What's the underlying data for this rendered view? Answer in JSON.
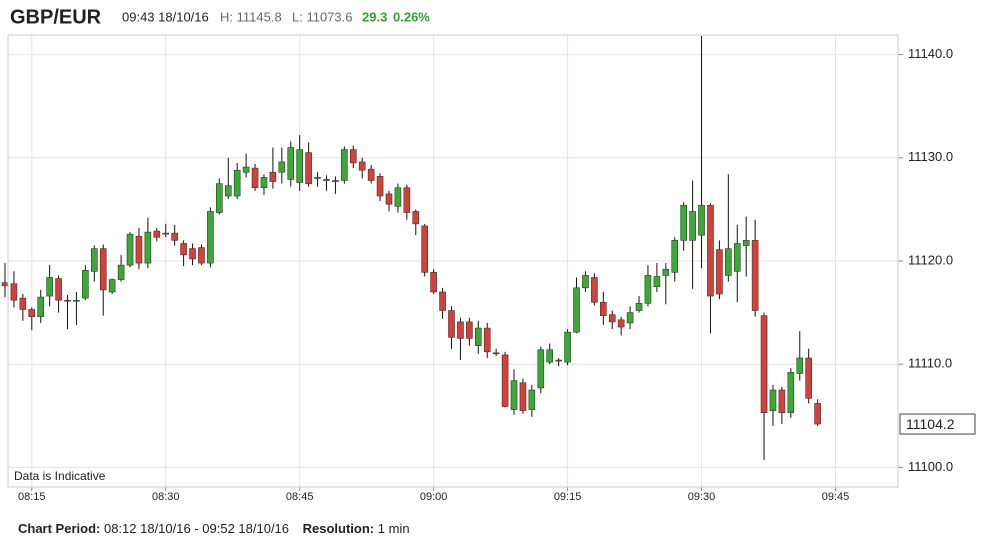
{
  "header": {
    "pair": "GBP/EUR",
    "time": "09:43 18/10/16",
    "high": "H: 11145.8",
    "low": "L: 11073.6",
    "change": "29.3",
    "change_pct": "0.26%"
  },
  "footer": {
    "period_label": "Chart Period:",
    "period": "08:12 18/10/16 - 09:52 18/10/16",
    "resolution_label": "Resolution:",
    "resolution": "1 min"
  },
  "chart_data": {
    "type": "candlestick",
    "annotation": "Data is Indicative",
    "up_color": "#3aaa35",
    "down_color": "#d6403a",
    "grid": true,
    "xlim": [
      "08:12",
      "09:52"
    ],
    "xticks": [
      "08:15",
      "08:30",
      "08:45",
      "09:00",
      "09:15",
      "09:30",
      "09:45"
    ],
    "ylim": [
      11098.1,
      11141.9
    ],
    "yticks": [
      {
        "value": 11100,
        "label": "11100.0"
      },
      {
        "value": 11110,
        "label": "11110.0"
      },
      {
        "value": 11120,
        "label": "11120.0"
      },
      {
        "value": 11130,
        "label": "11130.0"
      },
      {
        "value": 11140,
        "label": "11140.0"
      }
    ],
    "x": [
      "08:12",
      "08:13",
      "08:14",
      "08:15",
      "08:16",
      "08:17",
      "08:18",
      "08:19",
      "08:20",
      "08:21",
      "08:22",
      "08:23",
      "08:24",
      "08:25",
      "08:26",
      "08:27",
      "08:28",
      "08:29",
      "08:30",
      "08:31",
      "08:32",
      "08:33",
      "08:34",
      "08:35",
      "08:36",
      "08:37",
      "08:38",
      "08:39",
      "08:40",
      "08:41",
      "08:42",
      "08:43",
      "08:44",
      "08:45",
      "08:46",
      "08:47",
      "08:48",
      "08:49",
      "08:50",
      "08:51",
      "08:52",
      "08:53",
      "08:54",
      "08:55",
      "08:56",
      "08:57",
      "08:58",
      "08:59",
      "09:00",
      "09:01",
      "09:02",
      "09:03",
      "09:04",
      "09:05",
      "09:06",
      "09:07",
      "09:08",
      "09:09",
      "09:10",
      "09:11",
      "09:12",
      "09:13",
      "09:14",
      "09:15",
      "09:16",
      "09:17",
      "09:18",
      "09:19",
      "09:20",
      "09:21",
      "09:22",
      "09:23",
      "09:24",
      "09:25",
      "09:26",
      "09:27",
      "09:28",
      "09:29",
      "09:30",
      "09:31",
      "09:32",
      "09:33",
      "09:34",
      "09:35",
      "09:36",
      "09:37",
      "09:38",
      "09:39",
      "09:40",
      "09:41",
      "09:42",
      "09:43"
    ],
    "open": [
      11117.9,
      11117.8,
      11116.4,
      11115.3,
      11114.6,
      11116.6,
      11118.3,
      11116.2,
      11116.2,
      11116.4,
      11119.0,
      11121.2,
      11117.0,
      11118.2,
      11119.6,
      11122.4,
      11119.8,
      11122.9,
      11122.7,
      11122.7,
      11121.7,
      11121.2,
      11121.3,
      11119.8,
      11124.7,
      11126.3,
      11126.3,
      11128.6,
      11129.0,
      11127.1,
      11128.6,
      11128.6,
      11127.9,
      11127.6,
      11130.5,
      11128.1,
      11127.9,
      11127.8,
      11127.8,
      11130.8,
      11129.6,
      11128.9,
      11128.2,
      11126.5,
      11125.3,
      11127.1,
      11124.8,
      11123.4,
      11118.9,
      11117.0,
      11115.2,
      11114.1,
      11114.1,
      11111.8,
      11113.5,
      11111.1,
      11110.9,
      11105.6,
      11108.2,
      11105.6,
      11107.7,
      11110.2,
      11110.4,
      11110.2,
      11113.1,
      11117.4,
      11118.4,
      11116.0,
      11114.8,
      11114.3,
      11114.0,
      11115.2,
      11115.9,
      11117.5,
      11118.6,
      11118.9,
      11122.0,
      11122.0,
      11122.5,
      11125.4,
      11121.1,
      11118.6,
      11119.0,
      11121.5,
      11122.0,
      11114.7,
      11105.5,
      11107.5,
      11105.3,
      11109.1,
      11110.6,
      11106.2
    ],
    "high": [
      11119.8,
      11119.0,
      11116.8,
      11115.5,
      11117.2,
      11119.6,
      11118.6,
      11116.7,
      11117.0,
      11119.6,
      11121.5,
      11121.6,
      11118.3,
      11120.6,
      11122.8,
      11123.2,
      11124.2,
      11123.2,
      11123.6,
      11123.5,
      11122.0,
      11121.7,
      11121.6,
      11125.2,
      11128.0,
      11130.0,
      11129.5,
      11130.4,
      11129.4,
      11128.4,
      11131.0,
      11131.0,
      11131.6,
      11132.2,
      11131.5,
      11128.6,
      11128.3,
      11128.2,
      11131.1,
      11131.2,
      11130.0,
      11129.3,
      11128.5,
      11126.8,
      11127.5,
      11127.4,
      11125.0,
      11123.6,
      11119.2,
      11117.4,
      11115.6,
      11114.5,
      11114.5,
      11114.2,
      11114.0,
      11111.5,
      11111.2,
      11109.5,
      11108.6,
      11108.0,
      11111.7,
      11112.0,
      11110.6,
      11113.4,
      11118.4,
      11119.0,
      11118.8,
      11117.0,
      11115.2,
      11114.6,
      11115.6,
      11116.6,
      11119.6,
      11119.8,
      11119.8,
      11122.3,
      11125.7,
      11127.8,
      11141.8,
      11125.6,
      11122.0,
      11128.4,
      11123.5,
      11124.3,
      11124.0,
      11115.0,
      11108.0,
      11107.8,
      11109.6,
      11113.2,
      11111.5,
      11106.6
    ],
    "low": [
      11116.5,
      11115.5,
      11114.2,
      11113.3,
      11114.0,
      11115.6,
      11115.0,
      11113.4,
      11113.8,
      11116.2,
      11118.0,
      11114.7,
      11116.8,
      11118.0,
      11119.4,
      11119.2,
      11119.3,
      11121.9,
      11122.3,
      11121.5,
      11119.5,
      11119.6,
      11119.6,
      11119.4,
      11124.5,
      11126.0,
      11126.0,
      11128.1,
      11126.8,
      11126.4,
      11127.0,
      11127.5,
      11127.2,
      11126.8,
      11127.2,
      11127.2,
      11126.8,
      11126.5,
      11127.5,
      11129.0,
      11128.0,
      11127.5,
      11125.8,
      11124.8,
      11124.7,
      11124.0,
      11122.5,
      11118.5,
      11116.8,
      11114.4,
      11111.5,
      11110.4,
      11111.8,
      11111.0,
      11110.6,
      11110.8,
      11105.8,
      11105.1,
      11105.2,
      11104.9,
      11107.2,
      11110.0,
      11109.8,
      11109.9,
      11113.0,
      11117.0,
      11115.7,
      11113.8,
      11113.4,
      11112.8,
      11113.4,
      11115.0,
      11115.6,
      11117.0,
      11115.8,
      11118.0,
      11121.0,
      11117.3,
      11119.3,
      11113.0,
      11116.3,
      11118.0,
      11116.0,
      11118.5,
      11114.6,
      11100.7,
      11104.0,
      11104.2,
      11104.8,
      11108.4,
      11106.2,
      11104.0
    ],
    "close": [
      11117.6,
      11116.2,
      11115.3,
      11114.6,
      11116.5,
      11118.4,
      11116.2,
      11116.1,
      11116.2,
      11119.1,
      11121.2,
      11117.2,
      11118.2,
      11119.6,
      11122.6,
      11119.8,
      11122.8,
      11122.3,
      11122.6,
      11122.0,
      11120.6,
      11120.2,
      11119.8,
      11124.8,
      11127.5,
      11127.3,
      11128.8,
      11129.1,
      11127.1,
      11128.1,
      11127.7,
      11129.6,
      11131.0,
      11130.8,
      11127.5,
      11128.0,
      11127.8,
      11127.7,
      11130.8,
      11129.5,
      11128.8,
      11127.8,
      11126.3,
      11125.5,
      11127.1,
      11124.7,
      11123.6,
      11118.9,
      11117.0,
      11115.2,
      11112.6,
      11112.5,
      11112.5,
      11113.5,
      11111.2,
      11111.0,
      11105.9,
      11108.4,
      11105.5,
      11107.5,
      11111.4,
      11111.4,
      11110.3,
      11113.1,
      11117.4,
      11118.6,
      11116.0,
      11114.7,
      11114.1,
      11113.6,
      11115.0,
      11115.9,
      11118.6,
      11118.5,
      11119.2,
      11122.0,
      11125.4,
      11124.8,
      11125.4,
      11116.6,
      11116.8,
      11121.2,
      11121.7,
      11122.0,
      11115.2,
      11105.3,
      11107.5,
      11105.3,
      11109.2,
      11110.6,
      11106.7,
      11104.2
    ]
  }
}
